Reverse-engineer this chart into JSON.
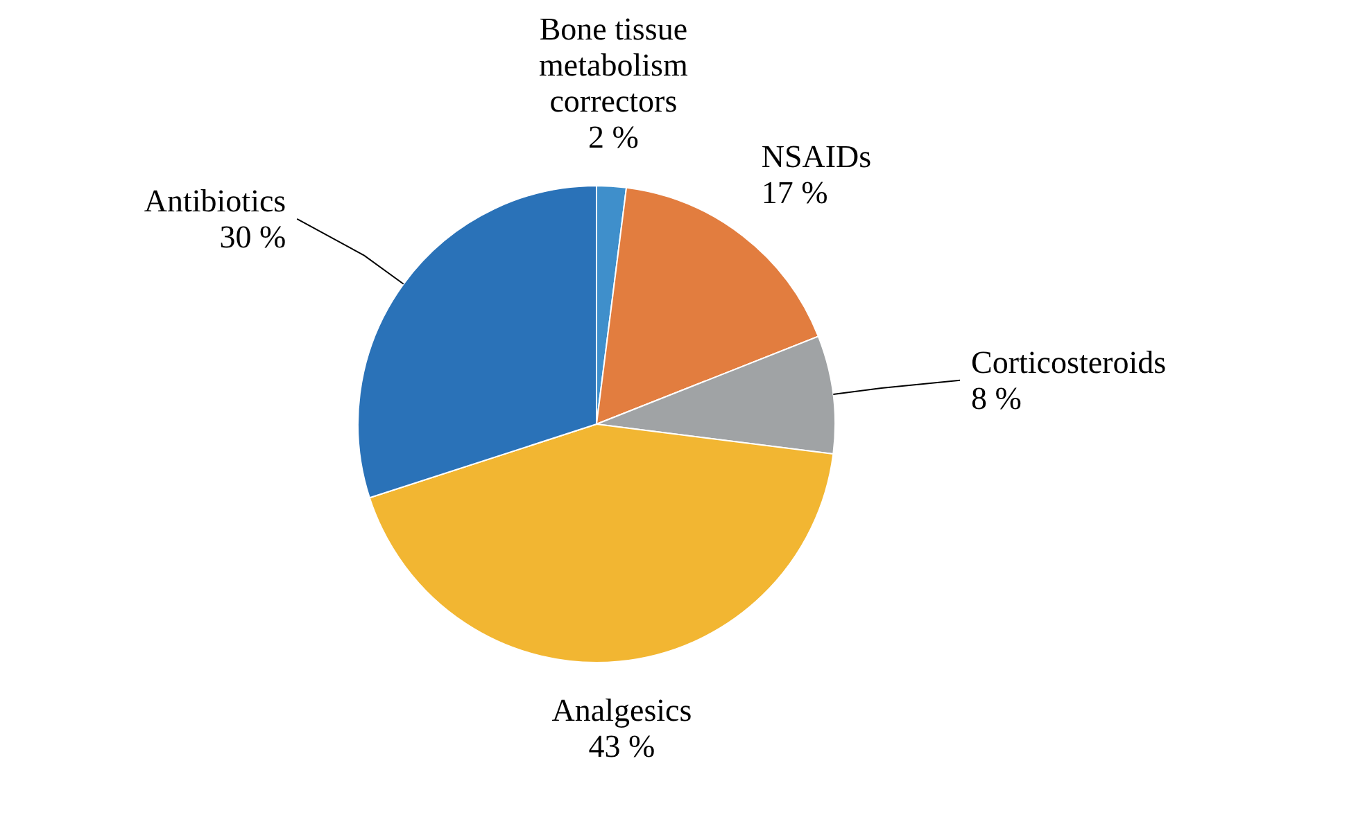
{
  "chart_data": {
    "type": "pie",
    "categories": [
      "Bone tissue metabolism correctors",
      "NSAIDs",
      "Corticosteroids",
      "Analgesics",
      "Antibiotics"
    ],
    "values": [
      2,
      17,
      8,
      43,
      30
    ],
    "colors": [
      "#3f8fcb",
      "#e27d3f",
      "#a0a3a5",
      "#f2b632",
      "#2a72b8"
    ],
    "value_labels": [
      "2 %",
      "17 %",
      "8 %",
      "43 %",
      "30 %"
    ]
  }
}
